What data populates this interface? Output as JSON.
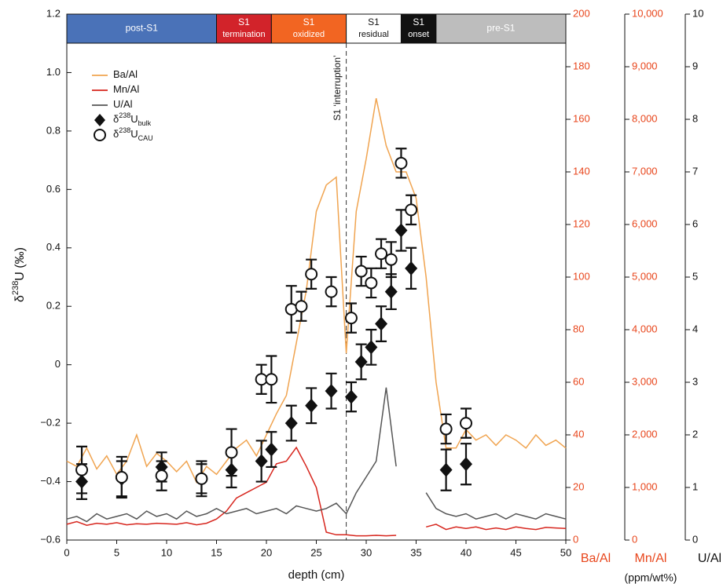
{
  "chart_data": {
    "type": "combo",
    "x_label": "depth (cm)",
    "y_label": [
      "δ",
      "238",
      "U (‰)"
    ],
    "xlim": [
      0,
      50
    ],
    "xticks": [
      0,
      5,
      10,
      15,
      20,
      25,
      30,
      35,
      40,
      45,
      50
    ],
    "ylim": [
      -0.6,
      1.2
    ],
    "yticks": [
      {
        "value": -0.6,
        "label": "−0.6"
      },
      {
        "value": -0.4,
        "label": "−0.4"
      },
      {
        "value": -0.2,
        "label": "−0.2"
      },
      0,
      0.2,
      0.4,
      0.6,
      0.8,
      {
        "value": 1.0,
        "label": "1.0"
      },
      {
        "value": 1.2,
        "label": "1.2"
      }
    ],
    "y2_label": "Ba/Al",
    "y2lim": [
      0,
      200
    ],
    "y2ticks": [
      0,
      20,
      40,
      60,
      80,
      100,
      120,
      140,
      160,
      180,
      200
    ],
    "y3_label": [
      "Mn/Al",
      "(ppm/wt%)"
    ],
    "y3lim": [
      0,
      10000
    ],
    "y3ticks": [
      0,
      {
        "value": 1000,
        "label": "1,000"
      },
      {
        "value": 2000,
        "label": "2,000"
      },
      {
        "value": 3000,
        "label": "3,000"
      },
      {
        "value": 4000,
        "label": "4,000"
      },
      {
        "value": 5000,
        "label": "5,000"
      },
      {
        "value": 6000,
        "label": "6,000"
      },
      {
        "value": 7000,
        "label": "7,000"
      },
      {
        "value": 8000,
        "label": "8,000"
      },
      {
        "value": 9000,
        "label": "9,000"
      },
      {
        "value": 10000,
        "label": "10,000"
      }
    ],
    "y4_label": "U/Al",
    "y4lim": [
      0,
      10
    ],
    "y4ticks": [
      0,
      1,
      2,
      3,
      4,
      5,
      6,
      7,
      8,
      9,
      10
    ],
    "axis_label_color": "#e8461c",
    "zones": [
      {
        "label": [
          "post-S1"
        ],
        "start": 0,
        "end": 15,
        "color": "#4a72b8",
        "text_color": "#ffffff"
      },
      {
        "label": [
          "S1",
          "termination"
        ],
        "start": 15,
        "end": 20.5,
        "color": "#d2232a",
        "text_color": "#ffffff"
      },
      {
        "label": [
          "S1",
          "oxidized"
        ],
        "start": 20.5,
        "end": 28,
        "color": "#f26522",
        "text_color": "#ffffff"
      },
      {
        "label": [
          "S1",
          "residual"
        ],
        "start": 28,
        "end": 33.5,
        "color": "#ffffff",
        "text_color": "#111111"
      },
      {
        "label": [
          "S1",
          "onset"
        ],
        "start": 33.5,
        "end": 37,
        "color": "#111111",
        "text_color": "#ffffff"
      },
      {
        "label": [
          "pre-S1"
        ],
        "start": 37,
        "end": 50,
        "color": "#bdbdbd",
        "text_color": "#ffffff"
      }
    ],
    "annotation": {
      "text": "S1 ‘interruption’",
      "x": 28
    },
    "series": [
      {
        "name": [
          "Ba/Al"
        ],
        "type": "line",
        "axis": "y2",
        "color": "#f0a450",
        "x": [
          0,
          1,
          2,
          3,
          4,
          5,
          6,
          7,
          8,
          9,
          10,
          11,
          12,
          13,
          14,
          15,
          16,
          17,
          18,
          19,
          20,
          21,
          22,
          23,
          24,
          25,
          26,
          27,
          28,
          29,
          30,
          31,
          32,
          33,
          34,
          35,
          36,
          37,
          38,
          39,
          40,
          41,
          42,
          43,
          44,
          45,
          46,
          47,
          48,
          49,
          50
        ],
        "values": [
          30,
          28,
          35,
          27,
          32,
          25,
          30,
          40,
          28,
          33,
          30,
          26,
          30,
          22,
          28,
          25,
          30,
          35,
          38,
          32,
          40,
          48,
          55,
          75,
          95,
          125,
          135,
          138,
          71,
          125,
          145,
          168,
          150,
          140,
          140,
          130,
          100,
          60,
          35,
          35,
          42,
          38,
          40,
          36,
          40,
          38,
          35,
          40,
          36,
          38,
          35
        ]
      },
      {
        "name": [
          "Mn/Al"
        ],
        "type": "line",
        "axis": "y3",
        "color": "#d7261e",
        "x": [
          0,
          1,
          2,
          3,
          4,
          5,
          6,
          7,
          8,
          9,
          10,
          11,
          12,
          13,
          14,
          15,
          16,
          17,
          18,
          19,
          20,
          21,
          22,
          23,
          24,
          25,
          26,
          27,
          28,
          29,
          30,
          31,
          32,
          33,
          34,
          35,
          36,
          37,
          38,
          39,
          40,
          41,
          42,
          43,
          44,
          45,
          46,
          47,
          48,
          49,
          50
        ],
        "values": [
          300,
          350,
          280,
          320,
          300,
          330,
          290,
          310,
          300,
          320,
          310,
          300,
          330,
          290,
          320,
          400,
          550,
          800,
          900,
          1000,
          1100,
          1450,
          1500,
          1760,
          1400,
          1000,
          150,
          100,
          100,
          80,
          80,
          90,
          80,
          90,
          null,
          null,
          250,
          300,
          200,
          250,
          220,
          250,
          200,
          230,
          200,
          250,
          220,
          200,
          240,
          230,
          220
        ]
      },
      {
        "name": [
          "U/Al"
        ],
        "type": "line",
        "axis": "y4",
        "color": "#555555",
        "x": [
          0,
          1,
          2,
          3,
          4,
          5,
          6,
          7,
          8,
          9,
          10,
          11,
          12,
          13,
          14,
          15,
          16,
          17,
          18,
          19,
          20,
          21,
          22,
          23,
          24,
          25,
          26,
          27,
          28,
          29,
          30,
          31,
          32,
          33,
          34,
          35,
          36,
          37,
          38,
          39,
          40,
          41,
          42,
          43,
          44,
          45,
          46,
          47,
          48,
          49,
          50
        ],
        "values": [
          0.4,
          0.45,
          0.35,
          0.5,
          0.4,
          0.45,
          0.5,
          0.4,
          0.55,
          0.45,
          0.5,
          0.4,
          0.55,
          0.45,
          0.5,
          0.6,
          0.5,
          0.55,
          0.6,
          0.5,
          0.55,
          0.6,
          0.5,
          0.65,
          0.6,
          0.55,
          0.6,
          0.7,
          0.5,
          0.9,
          1.2,
          1.5,
          2.9,
          1.4,
          null,
          null,
          0.9,
          0.6,
          0.5,
          0.45,
          0.5,
          0.4,
          0.45,
          0.5,
          0.4,
          0.5,
          0.45,
          0.4,
          0.5,
          0.45,
          0.4
        ]
      },
      {
        "name": [
          "δ",
          "238",
          "U",
          "bulk"
        ],
        "type": "scatter",
        "marker": "diamond",
        "color": "#111111",
        "x": [
          1.5,
          5.5,
          9.5,
          13.5,
          16.5,
          19.5,
          20.5,
          22.5,
          24.5,
          26.5,
          28.5,
          29.5,
          30.5,
          31.5,
          32.5,
          33.5,
          34.5,
          38,
          40
        ],
        "values": [
          -0.4,
          -0.39,
          -0.35,
          -0.39,
          -0.36,
          -0.33,
          -0.29,
          -0.2,
          -0.14,
          -0.09,
          -0.11,
          0.01,
          0.06,
          0.14,
          0.25,
          0.46,
          0.33,
          -0.36,
          -0.34
        ],
        "errors": [
          0.06,
          0.06,
          0.05,
          0.06,
          0.06,
          0.07,
          0.06,
          0.06,
          0.06,
          0.06,
          0.05,
          0.06,
          0.06,
          0.06,
          0.06,
          0.07,
          0.07,
          0.07,
          0.07
        ]
      },
      {
        "name": [
          "δ",
          "238",
          "U",
          "CAU"
        ],
        "type": "scatter",
        "marker": "circle",
        "color": "#111111",
        "x": [
          1.5,
          5.5,
          9.5,
          13.5,
          16.5,
          19.5,
          20.5,
          22.5,
          23.5,
          24.5,
          26.5,
          28.5,
          29.5,
          30.5,
          31.5,
          32.5,
          33.5,
          34.5,
          38,
          40
        ],
        "values": [
          -0.36,
          -0.385,
          -0.38,
          -0.39,
          -0.3,
          -0.05,
          -0.05,
          0.19,
          0.2,
          0.31,
          0.25,
          0.16,
          0.32,
          0.28,
          0.38,
          0.36,
          0.69,
          0.53,
          -0.22,
          -0.2
        ],
        "errors": [
          0.08,
          0.07,
          0.05,
          0.05,
          0.08,
          0.05,
          0.08,
          0.08,
          0.05,
          0.05,
          0.05,
          0.05,
          0.05,
          0.05,
          0.05,
          0.06,
          0.05,
          0.05,
          0.05,
          0.05
        ]
      }
    ]
  }
}
